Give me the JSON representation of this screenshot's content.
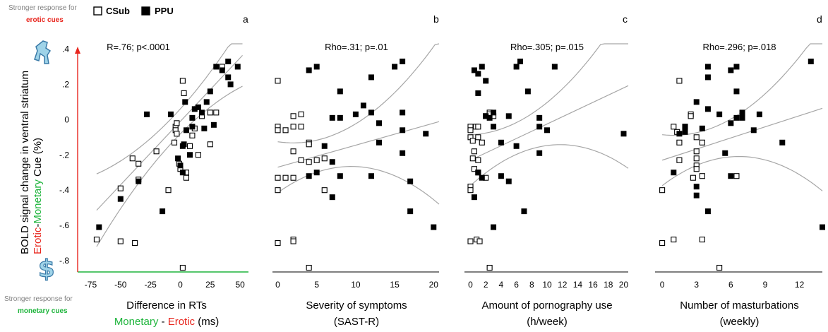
{
  "legend": {
    "items": [
      {
        "label": "CSub",
        "marker": "open-square"
      },
      {
        "label": "PPU",
        "marker": "filled-square"
      }
    ]
  },
  "side_notes": {
    "top_line1": "Stronger response for",
    "top_line2": "erotic cues",
    "bottom_line1": "Stronger response for",
    "bottom_line2": "monetary cues"
  },
  "y_axis": {
    "label_part1": "BOLD signal change in ventral striatum",
    "label_erotic": "Erotic",
    "label_dash": "-",
    "label_monetary": "Monetary",
    "label_end": " Cue (%)",
    "ticks": [
      ".4",
      ".2",
      "0",
      "-.2",
      "-.4",
      "-.6",
      "-.8"
    ],
    "top_icon": "runner-icon",
    "bottom_icon": "dollar-icon"
  },
  "colors": {
    "erotic": "#e8261e",
    "monetary": "#1db43b",
    "fit": "#a6a6a6",
    "axis_top": "#e8261e",
    "axis_right": "#1db43b"
  },
  "chart_data": [
    {
      "type": "scatter",
      "panel": "a",
      "annotation": "R=.76; p<.0001",
      "xlabel_line1": "Difference in RTs",
      "xlabel_line2_monetary": "Monetary",
      "xlabel_line2_dash": " - ",
      "xlabel_line2_erotic": "Erotic",
      "xlabel_line2_unit": " (ms)",
      "xlim": [
        -80,
        57
      ],
      "ylim": [
        -0.86,
        0.43
      ],
      "x_ticks": [
        -75,
        -50,
        -25,
        0,
        25,
        50
      ],
      "fit": {
        "slope": 0.0072,
        "intercept": -0.01,
        "ci": true
      },
      "series": [
        {
          "name": "CSub",
          "marker": "open",
          "points": [
            [
              -70,
              -0.68
            ],
            [
              -50,
              -0.39
            ],
            [
              -50,
              -0.69
            ],
            [
              -38,
              -0.7
            ],
            [
              -40,
              -0.22
            ],
            [
              -35,
              -0.25
            ],
            [
              -35,
              -0.34
            ],
            [
              -20,
              -0.18
            ],
            [
              -10,
              -0.4
            ],
            [
              -5,
              -0.13
            ],
            [
              -4,
              -0.04
            ],
            [
              -4,
              -0.06
            ],
            [
              -3,
              -0.08
            ],
            [
              -3,
              -0.02
            ],
            [
              -1,
              -0.25
            ],
            [
              0,
              -0.28
            ],
            [
              2,
              0.22
            ],
            [
              3,
              0.15
            ],
            [
              5,
              -0.33
            ],
            [
              5,
              -0.3
            ],
            [
              8,
              -0.15
            ],
            [
              10,
              -0.09
            ],
            [
              12,
              -0.05
            ],
            [
              15,
              -0.2
            ],
            [
              18,
              0.02
            ],
            [
              25,
              -0.14
            ],
            [
              25,
              0.04
            ],
            [
              30,
              0.04
            ],
            [
              35,
              0.3
            ],
            [
              2,
              -0.84
            ]
          ]
        },
        {
          "name": "PPU",
          "marker": "filled",
          "points": [
            [
              -68,
              -0.61
            ],
            [
              -50,
              -0.45
            ],
            [
              -35,
              -0.35
            ],
            [
              -15,
              -0.52
            ],
            [
              -28,
              0.03
            ],
            [
              -8,
              0.03
            ],
            [
              -2,
              -0.22
            ],
            [
              0,
              -0.26
            ],
            [
              2,
              -0.3
            ],
            [
              2,
              -0.15
            ],
            [
              3,
              -0.14
            ],
            [
              4,
              0.1
            ],
            [
              5,
              -0.06
            ],
            [
              8,
              -0.2
            ],
            [
              10,
              0.01
            ],
            [
              10,
              -0.04
            ],
            [
              12,
              0.06
            ],
            [
              15,
              0.07
            ],
            [
              18,
              0.04
            ],
            [
              20,
              -0.05
            ],
            [
              22,
              0.1
            ],
            [
              25,
              0.16
            ],
            [
              28,
              -0.03
            ],
            [
              30,
              0.3
            ],
            [
              35,
              0.28
            ],
            [
              40,
              0.24
            ],
            [
              40,
              0.33
            ],
            [
              42,
              0.2
            ],
            [
              48,
              0.3
            ]
          ]
        }
      ]
    },
    {
      "type": "scatter",
      "panel": "b",
      "annotation": "Rho=.31; p=.01",
      "xlabel_line1": "Severity of symptoms",
      "xlabel_line2": "(SAST-R)",
      "xlim": [
        -0.5,
        20.7
      ],
      "ylim": [
        -0.86,
        0.43
      ],
      "x_ticks": [
        0,
        5,
        10,
        15,
        20
      ],
      "fit": {
        "slope": 0.0125,
        "intercept": -0.27,
        "ci": true
      },
      "series": [
        {
          "name": "CSub",
          "marker": "open",
          "points": [
            [
              0,
              0.22
            ],
            [
              0,
              -0.04
            ],
            [
              0,
              -0.06
            ],
            [
              0,
              -0.33
            ],
            [
              0,
              -0.4
            ],
            [
              0,
              -0.7
            ],
            [
              1,
              -0.06
            ],
            [
              1,
              -0.33
            ],
            [
              2,
              -0.04
            ],
            [
              2,
              -0.18
            ],
            [
              2,
              -0.33
            ],
            [
              2,
              -0.68
            ],
            [
              2,
              -0.69
            ],
            [
              2,
              0.02
            ],
            [
              3,
              -0.04
            ],
            [
              3,
              -0.23
            ],
            [
              3,
              0.03
            ],
            [
              4,
              -0.13
            ],
            [
              4,
              -0.24
            ],
            [
              4,
              -0.14
            ],
            [
              5,
              -0.23
            ],
            [
              6,
              -0.22
            ],
            [
              6,
              -0.4
            ],
            [
              4,
              -0.84
            ]
          ]
        },
        {
          "name": "PPU",
          "marker": "filled",
          "points": [
            [
              4,
              0.28
            ],
            [
              5,
              0.3
            ],
            [
              4,
              -0.32
            ],
            [
              5,
              -0.3
            ],
            [
              6,
              -0.15
            ],
            [
              7,
              -0.44
            ],
            [
              7,
              -0.24
            ],
            [
              7,
              0.01
            ],
            [
              8,
              0.16
            ],
            [
              8,
              -0.32
            ],
            [
              8,
              0.01
            ],
            [
              10,
              0.03
            ],
            [
              11,
              0.08
            ],
            [
              12,
              0.24
            ],
            [
              12,
              -0.32
            ],
            [
              12,
              0.04
            ],
            [
              13,
              -0.02
            ],
            [
              13,
              -0.13
            ],
            [
              15,
              0.3
            ],
            [
              16,
              0.33
            ],
            [
              16,
              0.04
            ],
            [
              16,
              -0.06
            ],
            [
              16,
              -0.19
            ],
            [
              17,
              -0.35
            ],
            [
              17,
              -0.52
            ],
            [
              19,
              -0.08
            ],
            [
              20,
              -0.61
            ]
          ]
        }
      ]
    },
    {
      "type": "scatter",
      "panel": "c",
      "annotation": "Rho=.305; p=.015",
      "xlabel_line1": "Amount of pornography use",
      "xlabel_line2": "(h/week)",
      "xlim": [
        -0.6,
        20.6
      ],
      "ylim": [
        -0.86,
        0.43
      ],
      "x_ticks": [
        0,
        2,
        4,
        6,
        8,
        10,
        12,
        14,
        16,
        18,
        20
      ],
      "fit": {
        "slope": 0.0205,
        "intercept": -0.23,
        "ci": true
      },
      "series": [
        {
          "name": "CSub",
          "marker": "open",
          "points": [
            [
              0,
              -0.04
            ],
            [
              0,
              -0.06
            ],
            [
              0,
              -0.1
            ],
            [
              0,
              -0.38
            ],
            [
              0,
              -0.4
            ],
            [
              0,
              -0.69
            ],
            [
              0.3,
              -0.22
            ],
            [
              0.5,
              -0.28
            ],
            [
              0.5,
              -0.18
            ],
            [
              0.7,
              -0.04
            ],
            [
              0.8,
              -0.68
            ],
            [
              1,
              -0.23
            ],
            [
              1,
              -0.04
            ],
            [
              1,
              -0.1
            ],
            [
              1.2,
              -0.69
            ],
            [
              1.5,
              -0.13
            ],
            [
              2,
              0.02
            ],
            [
              2,
              -0.33
            ],
            [
              2.5,
              0.04
            ],
            [
              2.5,
              0.03
            ],
            [
              3,
              0.02
            ],
            [
              2.5,
              -0.84
            ],
            [
              1,
              -0.3
            ],
            [
              0.3,
              -0.12
            ]
          ]
        },
        {
          "name": "PPU",
          "marker": "filled",
          "points": [
            [
              0.5,
              0.28
            ],
            [
              1,
              0.26
            ],
            [
              1,
              0.15
            ],
            [
              1.5,
              0.3
            ],
            [
              0.5,
              -0.44
            ],
            [
              1,
              -0.3
            ],
            [
              1.5,
              -0.33
            ],
            [
              2,
              0.22
            ],
            [
              2,
              0.02
            ],
            [
              2.5,
              0.01
            ],
            [
              3,
              -0.04
            ],
            [
              3,
              -0.61
            ],
            [
              3,
              0.04
            ],
            [
              4,
              -0.13
            ],
            [
              4,
              -0.32
            ],
            [
              5,
              0.02
            ],
            [
              5,
              -0.35
            ],
            [
              6,
              0.3
            ],
            [
              6,
              -0.15
            ],
            [
              6.5,
              0.33
            ],
            [
              7,
              -0.52
            ],
            [
              7.5,
              0.16
            ],
            [
              9,
              0.01
            ],
            [
              9,
              -0.04
            ],
            [
              9,
              -0.19
            ],
            [
              10,
              -0.06
            ],
            [
              11,
              0.3
            ],
            [
              20,
              -0.08
            ]
          ]
        }
      ]
    },
    {
      "type": "scatter",
      "panel": "d",
      "annotation": "Rho=.296; p=.018",
      "xlabel_line1": "Number of masturbations",
      "xlabel_line2": "(weekly)",
      "xlim": [
        -0.5,
        14.0
      ],
      "ylim": [
        -0.86,
        0.43
      ],
      "x_ticks": [
        0,
        3,
        6,
        9,
        12
      ],
      "fit": {
        "slope": 0.021,
        "intercept": -0.23,
        "ci": true
      },
      "series": [
        {
          "name": "CSub",
          "marker": "open",
          "points": [
            [
              0,
              -0.4
            ],
            [
              0,
              -0.7
            ],
            [
              1,
              -0.68
            ],
            [
              1,
              -0.04
            ],
            [
              1.3,
              -0.07
            ],
            [
              1.5,
              -0.23
            ],
            [
              1.5,
              0.22
            ],
            [
              2,
              -0.04
            ],
            [
              2.5,
              0.03
            ],
            [
              2.5,
              0.02
            ],
            [
              2.7,
              -0.33
            ],
            [
              3,
              -0.22
            ],
            [
              3,
              -0.26
            ],
            [
              3,
              -0.18
            ],
            [
              3,
              -0.28
            ],
            [
              3,
              -0.1
            ],
            [
              3.5,
              -0.32
            ],
            [
              3.5,
              -0.68
            ],
            [
              3.5,
              -0.13
            ],
            [
              5,
              -0.84
            ],
            [
              6.5,
              -0.32
            ],
            [
              1.5,
              -0.13
            ]
          ]
        },
        {
          "name": "PPU",
          "marker": "filled",
          "points": [
            [
              1,
              -0.3
            ],
            [
              1.5,
              -0.08
            ],
            [
              2,
              -0.04
            ],
            [
              2,
              -0.07
            ],
            [
              3,
              -0.38
            ],
            [
              3,
              -0.43
            ],
            [
              3,
              0.1
            ],
            [
              3.5,
              -0.05
            ],
            [
              4,
              0.06
            ],
            [
              4,
              0.3
            ],
            [
              4,
              0.24
            ],
            [
              4,
              -0.52
            ],
            [
              5,
              0.03
            ],
            [
              5.5,
              -0.19
            ],
            [
              6,
              0.28
            ],
            [
              6,
              -0.02
            ],
            [
              6,
              -0.32
            ],
            [
              6.5,
              0.3
            ],
            [
              6.5,
              0.01
            ],
            [
              6.5,
              0.16
            ],
            [
              7,
              0.01
            ],
            [
              7,
              0.04
            ],
            [
              8,
              -0.06
            ],
            [
              8.5,
              0.03
            ],
            [
              10.5,
              -0.13
            ],
            [
              13,
              0.33
            ],
            [
              14,
              -0.61
            ]
          ]
        }
      ]
    }
  ]
}
